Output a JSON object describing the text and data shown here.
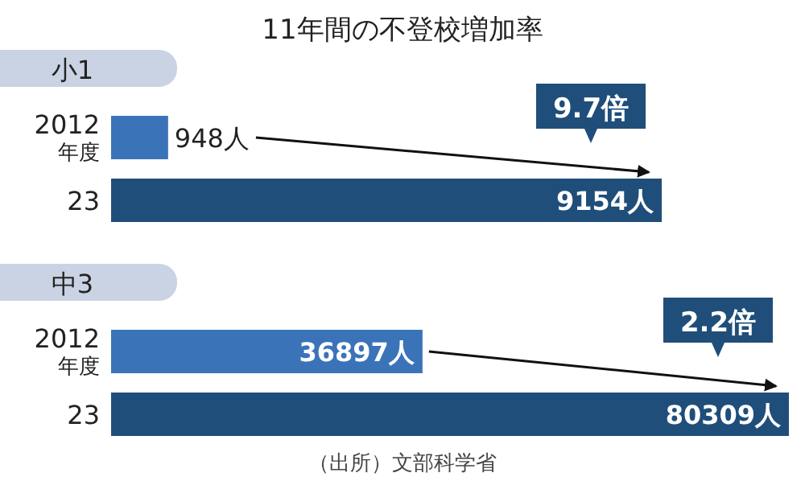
{
  "chart_data": [
    {
      "type": "bar",
      "orientation": "horizontal",
      "title": "11年間の不登校増加率",
      "subtitle": "小1",
      "categories": [
        "2012\n年度",
        "23"
      ],
      "values": [
        948,
        9154
      ],
      "value_labels": [
        "948人",
        "9154人"
      ],
      "colors": [
        "#3b73b9",
        "#1f4e7a"
      ],
      "annotations": [
        "9.7倍"
      ]
    },
    {
      "type": "bar",
      "orientation": "horizontal",
      "subtitle": "中3",
      "categories": [
        "2012\n年度",
        "23"
      ],
      "values": [
        36897,
        80309
      ],
      "value_labels": [
        "36897人",
        "80309人"
      ],
      "colors": [
        "#3b73b9",
        "#1f4e7a"
      ],
      "annotations": [
        "2.2倍",
        "（出所）文部科学省"
      ]
    }
  ]
}
